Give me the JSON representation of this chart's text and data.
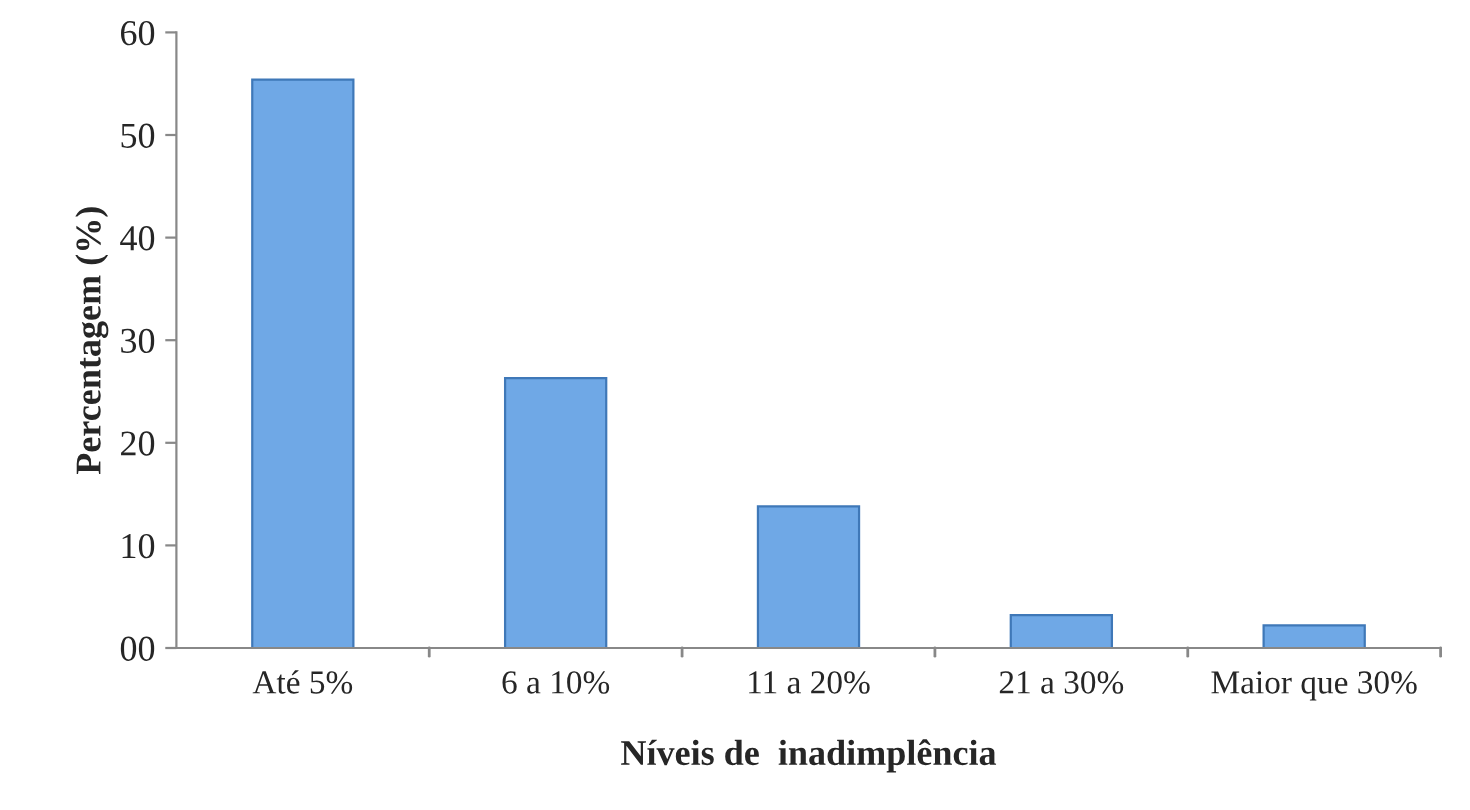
{
  "chart_data": {
    "type": "bar",
    "xlabel": "Níveis de  inadimplência",
    "ylabel": "Percentagem (%)",
    "categories": [
      "Até 5%",
      "6 a 10%",
      "11 a 20%",
      "21 a 30%",
      "Maior que 30%"
    ],
    "values": [
      55.4,
      26.3,
      13.8,
      3.2,
      2.2
    ],
    "color": "#6fa8e6",
    "ylim": [
      0,
      60
    ],
    "yticks": [
      {
        "value": 0,
        "label": "00"
      },
      10,
      20,
      30,
      40,
      50,
      60
    ],
    "grid": false
  }
}
